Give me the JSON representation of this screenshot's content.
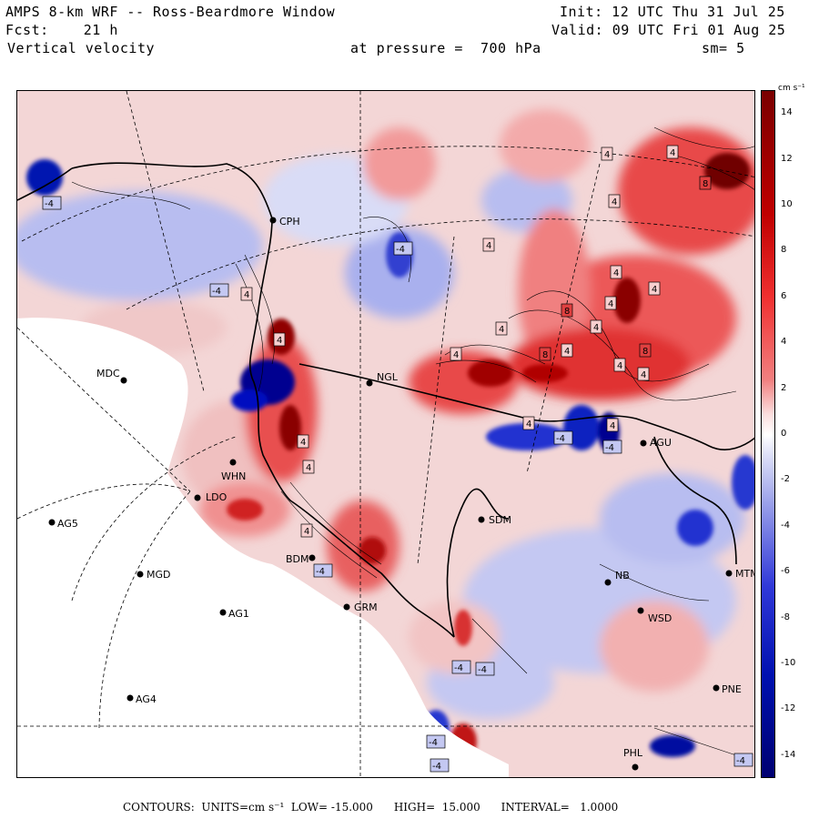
{
  "header": {
    "line1_left": "AMPS 8-km WRF -- Ross-Beardmore Window",
    "line2_left": "Fcst:    21 h",
    "line3_left": "Vertical velocity",
    "line1_right": "Init: 12 UTC Thu 31 Jul 25",
    "line2_right": "Valid: 09 UTC Fri 01 Aug 25",
    "pressure_label": "at pressure =  700 hPa",
    "smoothing": "sm= 5"
  },
  "colorbar": {
    "units": "cm s⁻¹",
    "ticks": [
      "14",
      "12",
      "10",
      "8",
      "6",
      "4",
      "2",
      "0",
      "-2",
      "-4",
      "-6",
      "-8",
      "-10",
      "-12",
      "-14"
    ],
    "range": [
      -15,
      15
    ],
    "colors": {
      "max_red": "#7a0000",
      "mid_red": "#e02020",
      "light_red": "#f4b8b8",
      "white": "#ffffff",
      "light_blue": "#c4c8f2",
      "mid_blue": "#3038d8",
      "max_blue": "#000070"
    }
  },
  "footer": {
    "text": "CONTOURS:  UNITS=cm s⁻¹  LOW= -15.000      HIGH=  15.000      INTERVAL=   1.0000"
  },
  "stations": [
    {
      "label": "CPH"
    },
    {
      "label": "MDC"
    },
    {
      "label": "NGL"
    },
    {
      "label": "WHN"
    },
    {
      "label": "LDO"
    },
    {
      "label": "AG5"
    },
    {
      "label": "MGD"
    },
    {
      "label": "AG1"
    },
    {
      "label": "AG4"
    },
    {
      "label": "BDM"
    },
    {
      "label": "GRM"
    },
    {
      "label": "SDM"
    },
    {
      "label": "NB"
    },
    {
      "label": "WSD"
    },
    {
      "label": "MTM"
    },
    {
      "label": "PNE"
    },
    {
      "label": "PHL"
    },
    {
      "label": "AGU"
    }
  ],
  "contour_labels": [
    "4",
    "-4",
    "8"
  ]
}
